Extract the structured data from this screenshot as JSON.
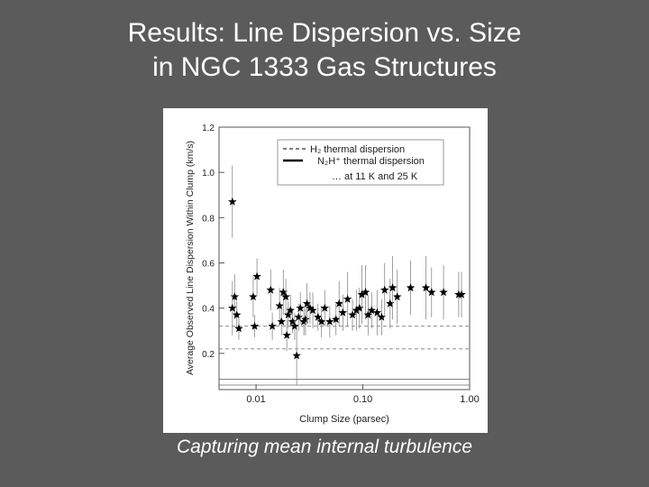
{
  "title": [
    "Results: Line Dispersion vs. Size",
    "in NGC 1333 Gas Structures"
  ],
  "caption": "Capturing mean internal turbulence",
  "chart_data": {
    "type": "scatter",
    "xlabel": "Clump Size (parsec)",
    "ylabel": "Average Observed Line Dispersion Within Clump (km/s)",
    "xscale": "log",
    "xlim": [
      0.0045,
      1.0
    ],
    "ylim": [
      0.04,
      1.2
    ],
    "xticks": [
      0.01,
      {
        "value": 0.1,
        "label": "0.10"
      },
      {
        "value": 1.0,
        "label": "1.00"
      }
    ],
    "yticks": [
      0.2,
      0.4,
      0.6,
      0.8,
      {
        "value": 1.0,
        "label": "1.0"
      },
      1.2
    ],
    "x": [
      0.006,
      0.0063,
      0.006,
      0.0066,
      0.0069,
      0.0102,
      0.0094,
      0.0097,
      0.0137,
      0.0142,
      0.0166,
      0.0173,
      0.018,
      0.019,
      0.0194,
      0.02,
      0.021,
      0.022,
      0.023,
      0.024,
      0.025,
      0.026,
      0.028,
      0.029,
      0.03,
      0.032,
      0.034,
      0.038,
      0.041,
      0.044,
      0.049,
      0.056,
      0.06,
      0.065,
      0.072,
      0.08,
      0.087,
      0.093,
      0.098,
      0.106,
      0.112,
      0.121,
      0.136,
      0.15,
      0.16,
      0.18,
      0.19,
      0.21,
      0.28,
      0.39,
      0.44,
      0.57,
      0.79,
      0.84
    ],
    "y": [
      0.87,
      0.45,
      0.4,
      0.37,
      0.31,
      0.54,
      0.45,
      0.32,
      0.48,
      0.32,
      0.41,
      0.34,
      0.47,
      0.45,
      0.28,
      0.37,
      0.39,
      0.34,
      0.32,
      0.19,
      0.36,
      0.4,
      0.34,
      0.35,
      0.42,
      0.4,
      0.39,
      0.36,
      0.34,
      0.4,
      0.34,
      0.35,
      0.42,
      0.38,
      0.44,
      0.37,
      0.39,
      0.4,
      0.46,
      0.47,
      0.37,
      0.39,
      0.38,
      0.36,
      0.48,
      0.42,
      0.49,
      0.45,
      0.49,
      0.49,
      0.47,
      0.47,
      0.46,
      0.46
    ],
    "error": [
      0.16,
      0.1,
      0.12,
      0.06,
      0.05,
      0.08,
      0.09,
      0.05,
      0.09,
      0.06,
      0.08,
      0.06,
      0.1,
      0.08,
      0.07,
      0.06,
      0.07,
      0.05,
      0.06,
      0.13,
      0.06,
      0.07,
      0.06,
      0.07,
      0.09,
      0.07,
      0.08,
      0.06,
      0.07,
      0.08,
      0.07,
      0.07,
      0.1,
      0.08,
      0.12,
      0.07,
      0.09,
      0.09,
      0.13,
      0.12,
      0.09,
      0.08,
      0.1,
      0.08,
      0.12,
      0.11,
      0.14,
      0.12,
      0.12,
      0.14,
      0.11,
      0.12,
      0.1,
      0.1
    ],
    "color": "#000000",
    "ref_lines": [
      {
        "legend": "H₂ thermal dispersion",
        "style": "dashed",
        "values": [
          0.22,
          0.32
        ]
      },
      {
        "legend": "N₂H⁺ thermal dispersion",
        "style": "solid",
        "values": [
          0.06,
          0.085
        ]
      }
    ],
    "legend_note": "… at 11 K and 25 K"
  }
}
